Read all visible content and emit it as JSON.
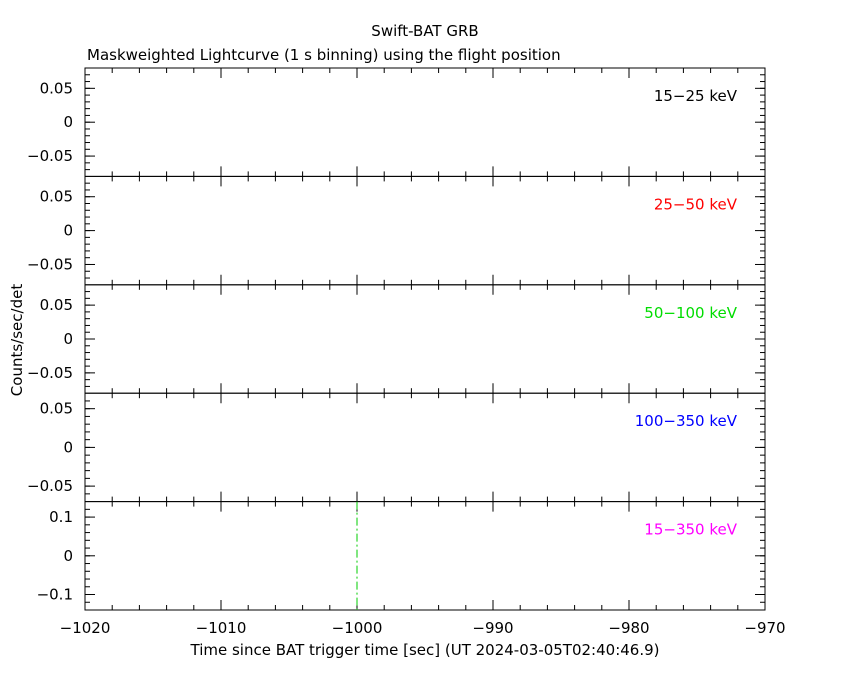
{
  "chart_data": {
    "type": "line",
    "title": "Swift-BAT GRB",
    "subtitle": "Maskweighted Lightcurve (1 s binning) using the flight position",
    "xlabel": "Time since BAT trigger time [sec] (UT 2024-03-05T02:40:46.9)",
    "ylabel": "Counts/sec/det",
    "xlim": [
      -1020,
      -970
    ],
    "x_ticks": [
      -1020,
      -1010,
      -1000,
      -990,
      -980,
      -970
    ],
    "x_tick_labels": [
      "−1020",
      "−1010",
      "−1000",
      "−990",
      "−980",
      "−970"
    ],
    "grid": false,
    "trigger_marker": {
      "x": -1000,
      "color": "#00cc00",
      "style": "dash-dot"
    },
    "panels": [
      {
        "band": "15−25 keV",
        "color": "#000000",
        "ylim": [
          -0.08,
          0.08
        ],
        "y_ticks": [
          0.05,
          0,
          -0.05
        ],
        "y_tick_labels": [
          "0.05",
          "0",
          "−0.05"
        ],
        "series": []
      },
      {
        "band": "25−50 keV",
        "color": "#ff0000",
        "ylim": [
          -0.08,
          0.08
        ],
        "y_ticks": [
          0.05,
          0,
          -0.05
        ],
        "y_tick_labels": [
          "0.05",
          "0",
          "−0.05"
        ],
        "series": []
      },
      {
        "band": "50−100 keV",
        "color": "#00dd00",
        "ylim": [
          -0.08,
          0.08
        ],
        "y_ticks": [
          0.05,
          0,
          -0.05
        ],
        "y_tick_labels": [
          "0.05",
          "0",
          "−0.05"
        ],
        "series": []
      },
      {
        "band": "100−350 keV",
        "color": "#0000ff",
        "ylim": [
          -0.07,
          0.07
        ],
        "y_ticks": [
          0.05,
          0,
          -0.05
        ],
        "y_tick_labels": [
          "0.05",
          "0",
          "−0.05"
        ],
        "series": []
      },
      {
        "band": "15−350 keV",
        "color": "#ff00ff",
        "ylim": [
          -0.14,
          0.14
        ],
        "y_ticks": [
          0.1,
          0,
          -0.1
        ],
        "y_tick_labels": [
          "0.1",
          "0",
          "−0.1"
        ],
        "series": []
      }
    ]
  }
}
